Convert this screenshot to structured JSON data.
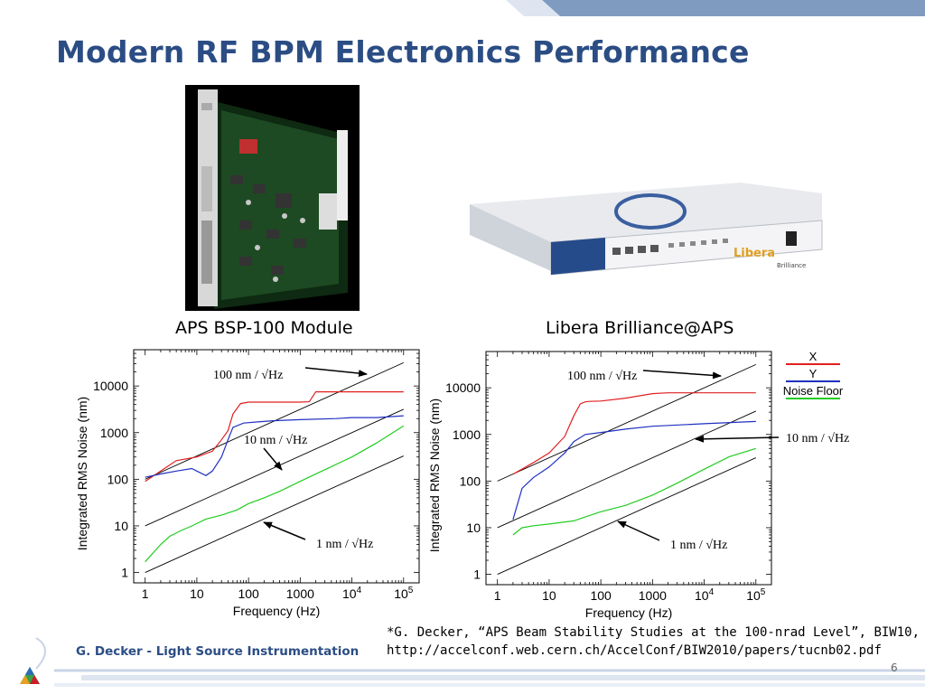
{
  "slide": {
    "title": "Modern RF BPM Electronics Performance",
    "caption_left": "APS BSP-100 Module",
    "caption_right": "Libera Brilliance@APS",
    "footer_author": "G. Decker - Light Source Instrumentation",
    "reference_line1": "*G. Decker, “APS Beam Stability Studies at the 100-nrad Level”, BIW10,",
    "reference_line2": "http://accelconf.web.cern.ch/AccelConf/BIW2010/papers/tucnb02.pdf",
    "page_number": "6",
    "libera_brand": "Libera",
    "libera_model": "Brilliance"
  },
  "colors": {
    "title_blue": "#2b4d84",
    "band_blue": "#7f9cc0",
    "series_x": "#e02020",
    "series_y": "#2030c0",
    "series_noise": "#22cc22"
  },
  "legend": {
    "x_label": "X",
    "y_label": "Y",
    "noise_label": "Noise Floor"
  },
  "chart_data": [
    {
      "type": "line",
      "xlabel": "Frequency (Hz)",
      "ylabel": "Integrated RMS Noise (nm)",
      "xscale": "log",
      "yscale": "log",
      "xlim": [
        0.6,
        200000
      ],
      "ylim": [
        0.6,
        60000
      ],
      "xticks": [
        "1",
        "10",
        "100",
        "1000",
        "10^4",
        "10^5"
      ],
      "yticks": [
        "1",
        "10",
        "100",
        "1000",
        "10000"
      ],
      "annotations": [
        "100 nm / √Hz",
        "10 nm / √Hz",
        "1 nm / √Hz"
      ],
      "series": [
        {
          "x": [
            1,
            2,
            4,
            10,
            20,
            30,
            40,
            50,
            70,
            100,
            200,
            600,
            1000,
            1500,
            2000,
            5000,
            10000,
            100000
          ],
          "values": [
            90,
            150,
            250,
            300,
            400,
            700,
            1100,
            2500,
            4200,
            4500,
            4500,
            4500,
            4500,
            4600,
            7500,
            7500,
            7500,
            7500
          ]
        },
        {
          "x": [
            1,
            2,
            4,
            8,
            10,
            15,
            20,
            30,
            40,
            50,
            80,
            150,
            300,
            1000,
            5000,
            10000,
            30000,
            100000
          ],
          "values": [
            110,
            130,
            150,
            170,
            150,
            120,
            150,
            300,
            700,
            1300,
            1600,
            1700,
            1800,
            1900,
            2000,
            2100,
            2100,
            2300
          ]
        },
        {
          "x": [
            1,
            2,
            3,
            5,
            8,
            15,
            30,
            60,
            100,
            200,
            400,
            1000,
            3000,
            10000,
            30000,
            100000
          ],
          "values": [
            1.7,
            4,
            6,
            8,
            10,
            14,
            17,
            22,
            30,
            40,
            55,
            90,
            160,
            300,
            600,
            1400
          ]
        }
      ],
      "reference_lines": [
        {
          "label": "100 nm / √Hz",
          "x": [
            1,
            100000
          ],
          "values": [
            100,
            31600
          ]
        },
        {
          "label": "10 nm / √Hz",
          "x": [
            1,
            100000
          ],
          "values": [
            10,
            3160
          ]
        },
        {
          "label": "1 nm / √Hz",
          "x": [
            1,
            100000
          ],
          "values": [
            1,
            316
          ]
        }
      ]
    },
    {
      "type": "line",
      "xlabel": "Frequency (Hz)",
      "ylabel": "Integrated RMS Noise (nm)",
      "xscale": "log",
      "yscale": "log",
      "xlim": [
        0.6,
        200000
      ],
      "ylim": [
        0.6,
        60000
      ],
      "xticks": [
        "1",
        "10",
        "100",
        "1000",
        "10^4",
        "10^5"
      ],
      "yticks": [
        "1",
        "10",
        "100",
        "1000",
        "10000"
      ],
      "legend_position": "outside-top-right",
      "annotations": [
        "100 nm / √Hz",
        "10 nm / √Hz",
        "1 nm / √Hz"
      ],
      "series": [
        {
          "name": "X",
          "x": [
            2,
            5,
            10,
            20,
            30,
            40,
            50,
            60,
            100,
            300,
            1000,
            2000,
            10000,
            100000
          ],
          "values": [
            140,
            250,
            400,
            900,
            2500,
            4500,
            5000,
            5100,
            5200,
            6000,
            7500,
            7800,
            7800,
            7800
          ]
        },
        {
          "name": "Y",
          "x": [
            2,
            3,
            5,
            10,
            15,
            20,
            30,
            50,
            100,
            300,
            1000,
            10000,
            100000
          ],
          "values": [
            15,
            70,
            120,
            200,
            300,
            400,
            700,
            1000,
            1100,
            1300,
            1500,
            1700,
            1900
          ]
        },
        {
          "name": "Noise Floor",
          "x": [
            2,
            3,
            5,
            10,
            30,
            50,
            100,
            300,
            1000,
            3000,
            10000,
            30000,
            100000
          ],
          "values": [
            7,
            10,
            11,
            12,
            14,
            17,
            22,
            30,
            50,
            90,
            180,
            330,
            500
          ]
        }
      ],
      "reference_lines": [
        {
          "label": "100 nm / √Hz",
          "x": [
            1,
            100000
          ],
          "values": [
            100,
            31600
          ]
        },
        {
          "label": "10 nm / √Hz",
          "x": [
            1,
            100000
          ],
          "values": [
            10,
            3160
          ]
        },
        {
          "label": "1 nm / √Hz",
          "x": [
            1,
            100000
          ],
          "values": [
            1,
            316
          ]
        }
      ]
    }
  ]
}
